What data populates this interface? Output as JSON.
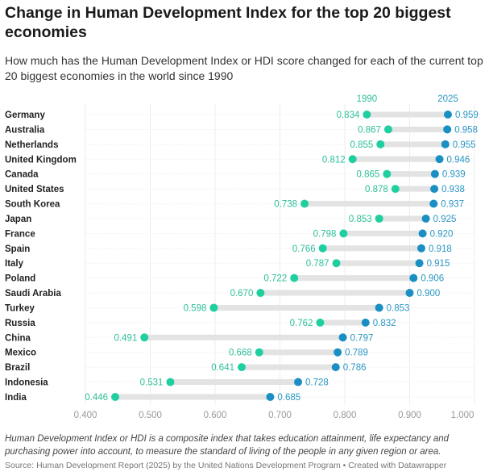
{
  "title": "Change in Human Development Index for the top 20 biggest economies",
  "subtitle": "How much has the Human Development Index or HDI score changed for each of the current top 20 biggest economies in the world since 1990",
  "note": "Human Development Index or HDI is a composite index that takes education attainment, life expectancy and purchasing power into account, to measure the standard of living of the people in any given region or area.",
  "source": "Source: Human Development Report (2025) by the United Nations Development Program • Created with Datawrapper",
  "chart_data": {
    "type": "dumbbell",
    "title": "Change in Human Development Index for the top 20 biggest economies",
    "xlim": [
      0.4,
      1.0
    ],
    "xticks": [
      "0.400",
      "0.500",
      "0.600",
      "0.700",
      "0.800",
      "0.900",
      "1.000"
    ],
    "grid": true,
    "legend": "top",
    "colors": {
      "1990": "#20cfa0",
      "2025": "#1a8fc4",
      "bar": "#e3e3e3"
    },
    "series_names": [
      "1990",
      "2025"
    ],
    "categories": [
      "Germany",
      "Australia",
      "Netherlands",
      "United Kingdom",
      "Canada",
      "United States",
      "South Korea",
      "Japan",
      "France",
      "Spain",
      "Italy",
      "Poland",
      "Saudi Arabia",
      "Turkey",
      "Russia",
      "China",
      "Mexico",
      "Brazil",
      "Indonesia",
      "India"
    ],
    "v1990": [
      0.834,
      0.867,
      0.855,
      0.812,
      0.865,
      0.878,
      0.738,
      0.853,
      0.798,
      0.766,
      0.787,
      0.722,
      0.67,
      0.598,
      0.762,
      0.491,
      0.668,
      0.641,
      0.531,
      0.446
    ],
    "v2025": [
      0.959,
      0.958,
      0.955,
      0.946,
      0.939,
      0.938,
      0.937,
      0.925,
      0.92,
      0.918,
      0.915,
      0.906,
      0.9,
      0.853,
      0.832,
      0.797,
      0.789,
      0.786,
      0.728,
      0.685
    ]
  }
}
